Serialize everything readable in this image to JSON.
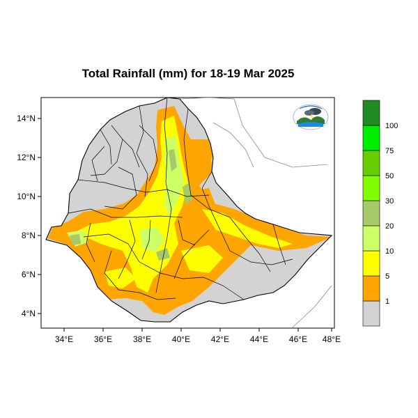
{
  "title": "Total Rainfall (mm) for 18-19 Mar 2025",
  "axes": {
    "x_ticks": [
      "34°E",
      "36°E",
      "38°E",
      "40°E",
      "42°E",
      "44°E",
      "46°E",
      "48°E"
    ],
    "y_ticks": [
      "14°N",
      "12°N",
      "10°N",
      "8°N",
      "6°N",
      "4°N"
    ]
  },
  "map_extent": {
    "lon": [
      33,
      48
    ],
    "lat": [
      3.2,
      15
    ]
  },
  "legend": {
    "class_labels": [
      "1",
      "5",
      "10",
      "20",
      "30",
      "50",
      "75",
      "100"
    ],
    "bins": [
      {
        "color": "#d3d3d3"
      },
      {
        "color": "#ffa500"
      },
      {
        "color": "#ffff00"
      },
      {
        "color": "#ccff66"
      },
      {
        "color": "#a6c96a"
      },
      {
        "color": "#7fff00"
      },
      {
        "color": "#66cd00"
      },
      {
        "color": "#00ee00"
      },
      {
        "color": "#228b22"
      }
    ]
  },
  "colors": {
    "land": "#d3d3d3",
    "no_data": "#ffffff",
    "border": "#000000"
  },
  "logo": {
    "icon": "meteorology-agency-logo"
  }
}
